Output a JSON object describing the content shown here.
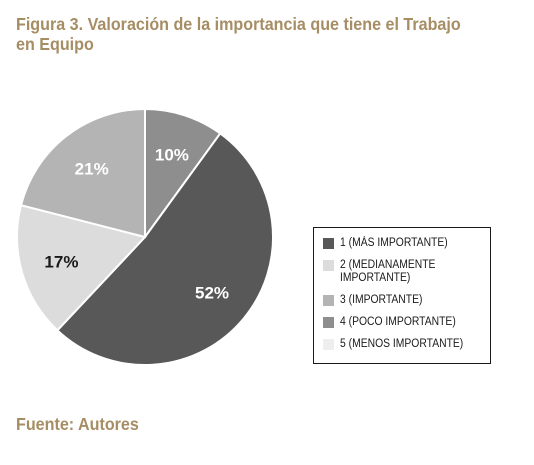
{
  "figure_title": "Figura 3. Valoración de la importancia que tiene el Trabajo en Equipo",
  "source": "Fuente: Autores",
  "colors": {
    "title": "#a68d64",
    "slice_1": "#585858",
    "slice_2": "#dcdcdc",
    "slice_3": "#b4b4b4",
    "slice_4": "#8e8e8e",
    "slice_5": "#eeeeee"
  },
  "chart_data": {
    "type": "pie",
    "start": "12 o'clock, clockwise",
    "slices": [
      {
        "label": "4 (POCO IMPORTANTE)",
        "value": 10,
        "value_label": "10%",
        "color": "#8e8e8e",
        "label_color": "#ffffff"
      },
      {
        "label": "1 (MÁS IMPORTANTE)",
        "value": 52,
        "value_label": "52%",
        "color": "#585858",
        "label_color": "#ffffff"
      },
      {
        "label": "2 (MEDIANAMENTE IMPORTANTE)",
        "value": 17,
        "value_label": "17%",
        "color": "#dcdcdc",
        "label_color": "#1a1a1a"
      },
      {
        "label": "3 (IMPORTANTE)",
        "value": 21,
        "value_label": "21%",
        "color": "#b4b4b4",
        "label_color": "#ffffff"
      }
    ],
    "legend_position": "right",
    "legend": [
      {
        "label": "1 (MÁS IMPORTANTE)",
        "color": "#585858"
      },
      {
        "label": "2 (MEDIANAMENTE IMPORTANTE)",
        "color": "#dcdcdc"
      },
      {
        "label": "3 (IMPORTANTE)",
        "color": "#b4b4b4"
      },
      {
        "label": "4 (POCO IMPORTANTE)",
        "color": "#8e8e8e"
      },
      {
        "label": "5 (MENOS IMPORTANTE)",
        "color": "#eeeeee"
      }
    ]
  }
}
